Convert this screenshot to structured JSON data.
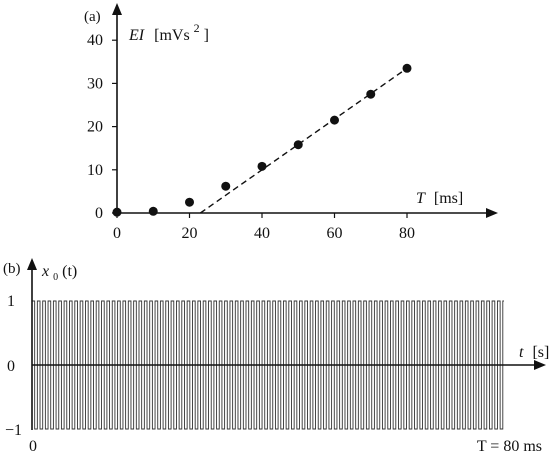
{
  "chart_data": [
    {
      "type": "scatter",
      "panel_label": "(a)",
      "xlabel_var": "T",
      "xlabel_unit": "[ms]",
      "ylabel_var": "EI",
      "ylabel_unit": "[mVs",
      "ylabel_exp": "2",
      "ylabel_close": "]",
      "xlim": [
        0,
        85
      ],
      "ylim": [
        0,
        43
      ],
      "xticks": [
        0,
        20,
        40,
        60,
        80
      ],
      "yticks": [
        0,
        10,
        20,
        30,
        40
      ],
      "grid": false,
      "series": [
        {
          "x": [
            0,
            10,
            20,
            30,
            40,
            50,
            60,
            70,
            80
          ],
          "y": [
            0.2,
            0.4,
            2.5,
            6.2,
            10.8,
            15.8,
            21.5,
            27.5,
            33.5
          ]
        }
      ],
      "fit_line": {
        "style": "dashed",
        "points": [
          [
            23,
            0
          ],
          [
            80,
            33.5
          ]
        ]
      }
    },
    {
      "type": "line",
      "panel_label": "(b)",
      "xlabel_var": "t",
      "xlabel_unit": "[s]",
      "ylabel_var": "x",
      "ylabel_sub": "0",
      "ylabel_arg": "(t)",
      "ylim": [
        -1,
        1
      ],
      "yticks": [
        "1",
        "0",
        "−1"
      ],
      "x_start_label": "0",
      "x_end_label": "T = 80 ms",
      "signal": "square wave",
      "levels": [
        -1,
        1
      ],
      "grid": false
    }
  ]
}
